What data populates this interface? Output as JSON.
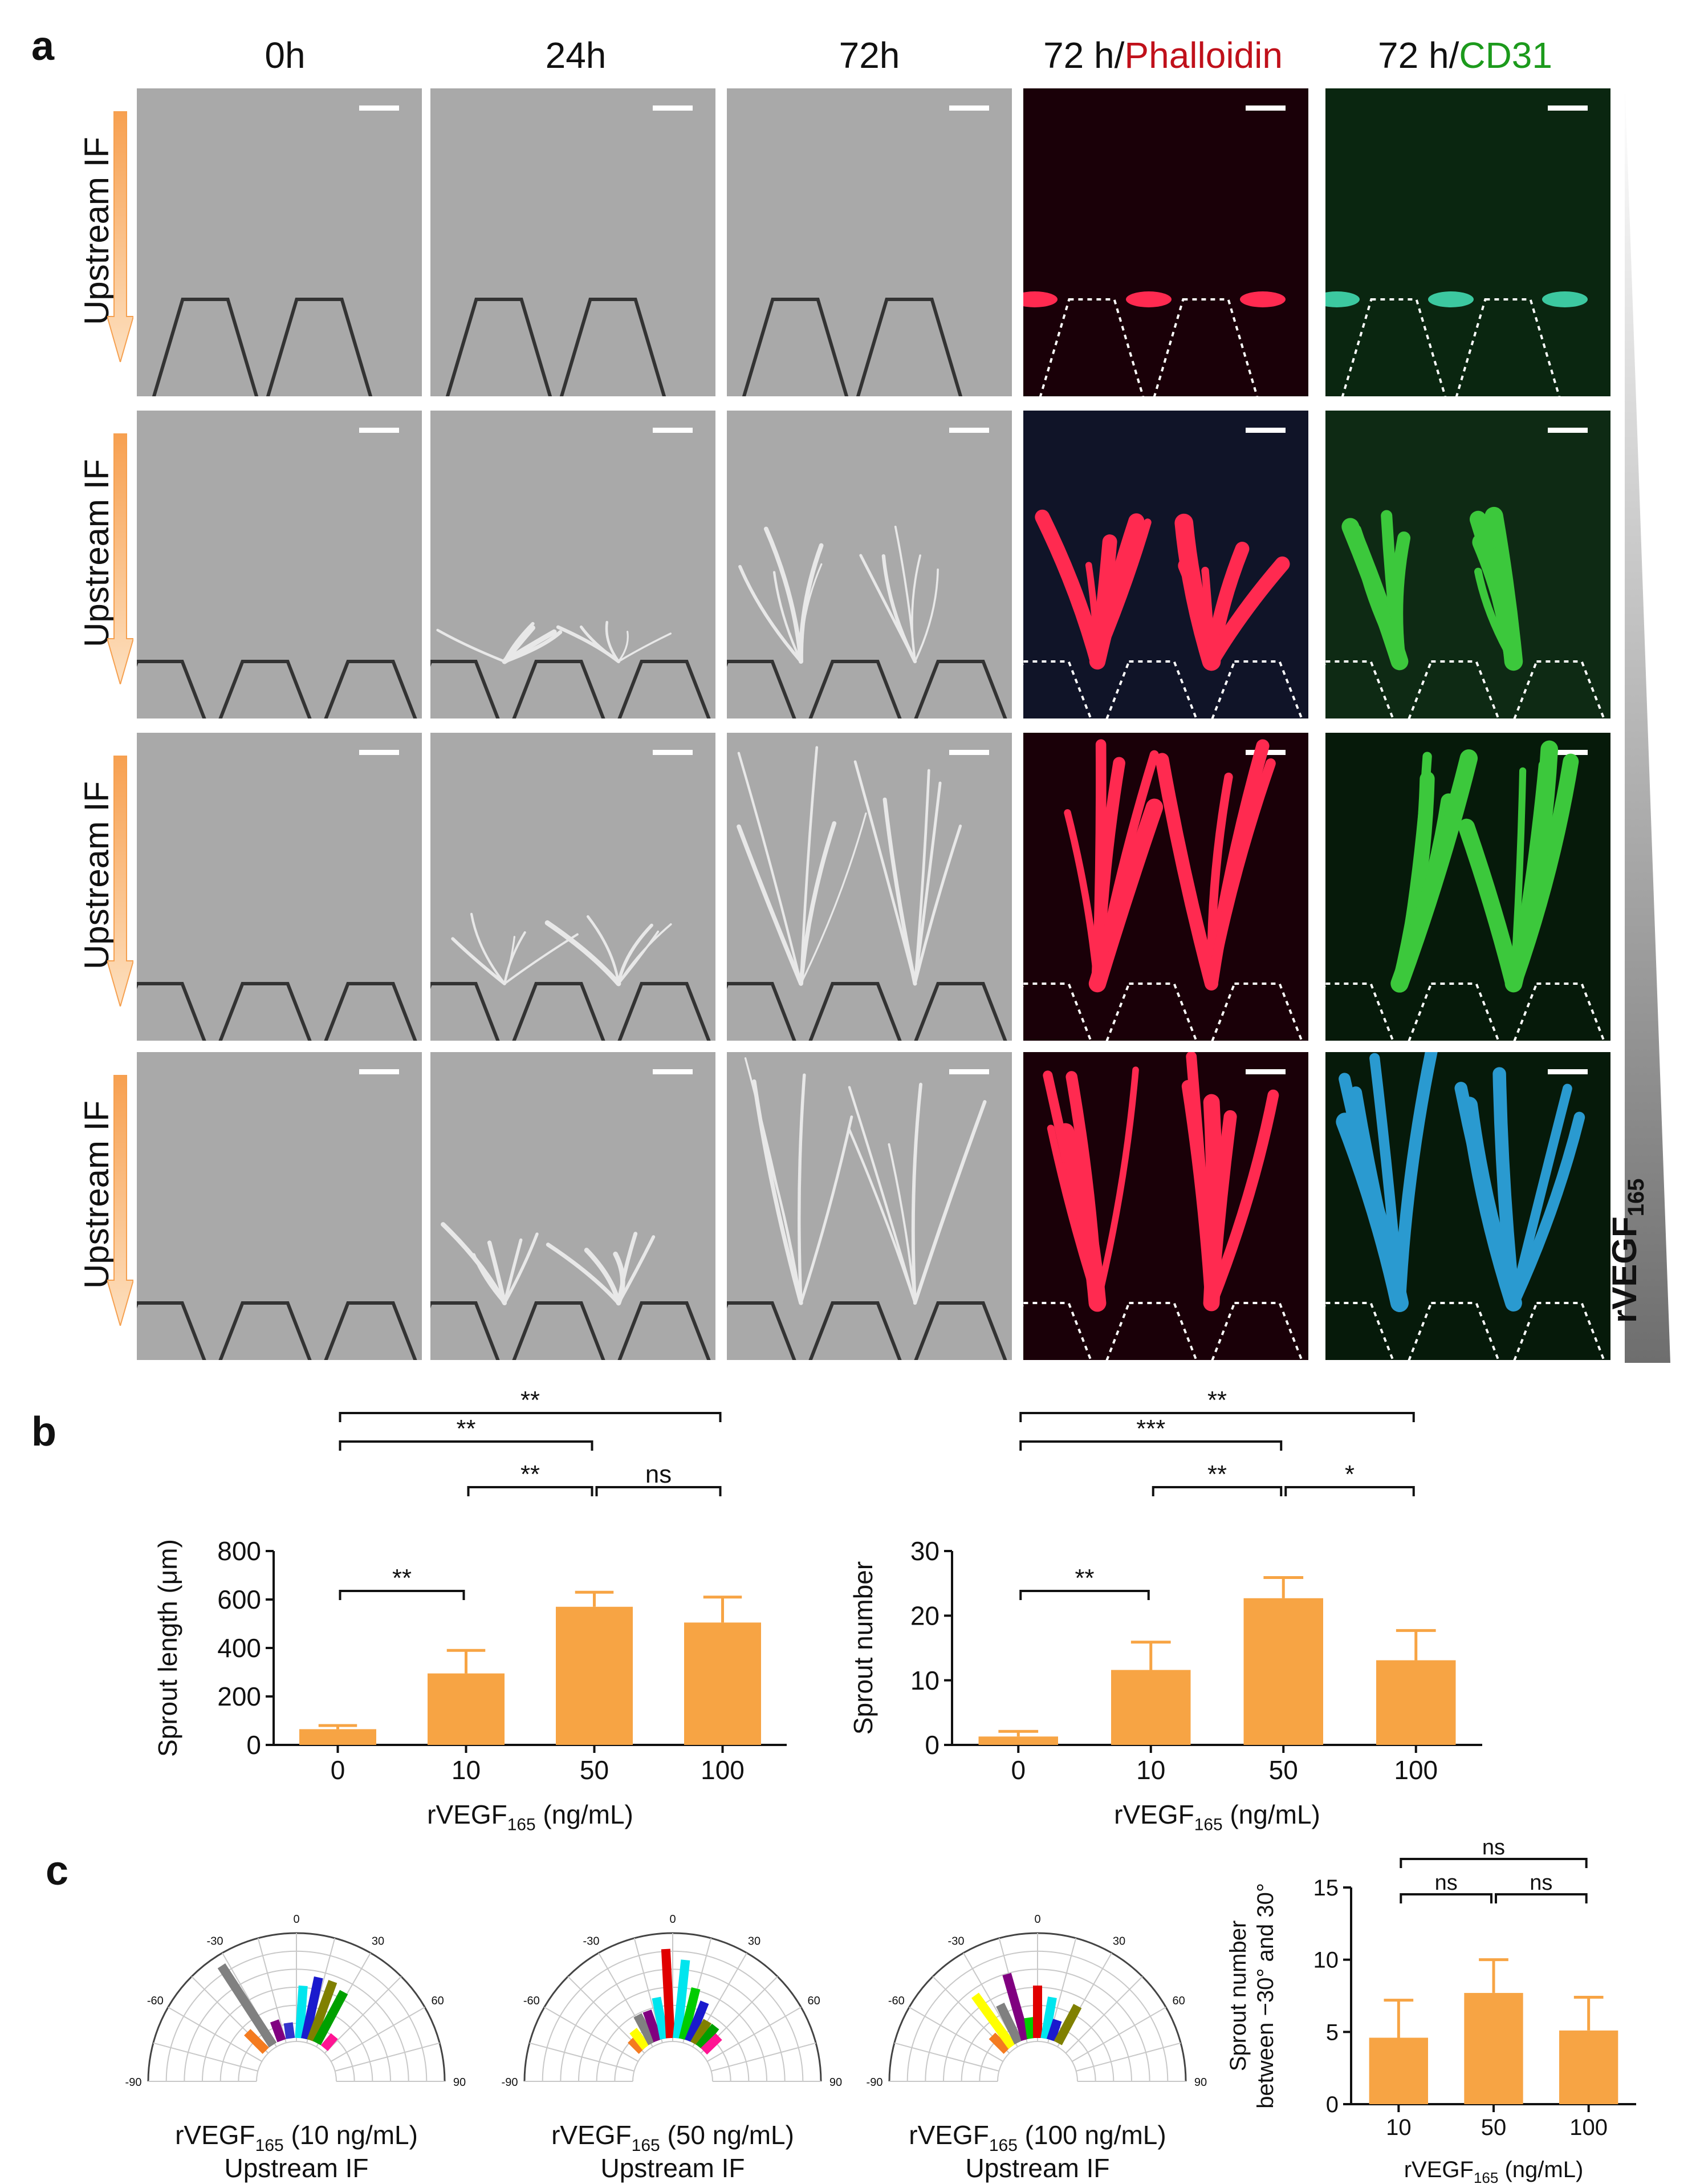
{
  "panels": {
    "a": "a",
    "b": "b",
    "c": "c"
  },
  "panel_a": {
    "columns": [
      {
        "label": "0h"
      },
      {
        "label": "24h"
      },
      {
        "label": "72h"
      },
      {
        "prefix": "72 h/",
        "stain": "Phalloidin",
        "stain_color": "#c0101a"
      },
      {
        "prefix": "72 h/",
        "stain": "CD31",
        "stain_color": "#1c9a1c"
      }
    ],
    "row_labels": [
      "Upstream IF",
      "Upstream IF",
      "Upstream IF",
      "Upstream IF"
    ],
    "gradient_label_main": "rVEGF",
    "gradient_label_sub": "165"
  },
  "chart_data": [
    {
      "type": "bar",
      "categories": [
        "0",
        "10",
        "50",
        "100"
      ],
      "values": [
        65,
        295,
        570,
        505
      ],
      "errors": [
        15,
        95,
        60,
        105
      ],
      "ylabel_main": "Sprout length (μm)",
      "xlabel_main": "rVEGF",
      "xlabel_sub": "165",
      "xlabel_tail": " (ng/mL)",
      "ylim": [
        0,
        800
      ],
      "yticks": [
        "0",
        "200",
        "400",
        "600",
        "800"
      ],
      "color": "#f7a444",
      "significance": [
        {
          "from": 0,
          "to": 3,
          "label": "**"
        },
        {
          "from": 0,
          "to": 2,
          "label": "**"
        },
        {
          "from": 1,
          "to": 2,
          "label": "**"
        },
        {
          "from": 2,
          "to": 3,
          "label": "ns"
        },
        {
          "from": 0,
          "to": 1,
          "label": "**"
        }
      ]
    },
    {
      "type": "bar",
      "categories": [
        "0",
        "10",
        "50",
        "100"
      ],
      "values": [
        1.3,
        11.6,
        22.7,
        13.1
      ],
      "errors": [
        0.8,
        4.3,
        3.2,
        4.6
      ],
      "ylabel_main": "Sprout number",
      "xlabel_main": "rVEGF",
      "xlabel_sub": "165",
      "xlabel_tail": " (ng/mL)",
      "ylim": [
        0,
        30
      ],
      "yticks": [
        "0",
        "10",
        "20",
        "30"
      ],
      "color": "#f7a444",
      "significance": [
        {
          "from": 0,
          "to": 3,
          "label": "**"
        },
        {
          "from": 0,
          "to": 2,
          "label": "***"
        },
        {
          "from": 1,
          "to": 2,
          "label": "**"
        },
        {
          "from": 2,
          "to": 3,
          "label": "*"
        },
        {
          "from": 0,
          "to": 1,
          "label": "**"
        }
      ]
    },
    {
      "type": "polar-bar",
      "caption_main": "rVEGF",
      "caption_sub": "165",
      "caption_tail": "  (10 ng/mL)",
      "caption_line2": "Upstream IF",
      "angle_ticks": [
        "-90",
        "-60",
        "-30",
        "0",
        "30",
        "60",
        "90"
      ],
      "bars": [
        {
          "angle": -45,
          "length": 0.25,
          "color": "#f47b20"
        },
        {
          "angle": -33,
          "length": 0.9,
          "color": "#808080"
        },
        {
          "angle": -20,
          "length": 0.2,
          "color": "#800080"
        },
        {
          "angle": -8,
          "length": 0.15,
          "color": "#3333cc"
        },
        {
          "angle": 4,
          "length": 0.5,
          "color": "#00e5ee"
        },
        {
          "angle": 12,
          "length": 0.6,
          "color": "#1a1acd"
        },
        {
          "angle": 20,
          "length": 0.6,
          "color": "#808000"
        },
        {
          "angle": 28,
          "length": 0.55,
          "color": "#00a000"
        },
        {
          "angle": 40,
          "length": 0.15,
          "color": "#ff1493"
        }
      ]
    },
    {
      "type": "polar-bar",
      "caption_main": "rVEGF",
      "caption_sub": "165",
      "caption_tail": " (50 ng/mL)",
      "caption_line2": "Upstream IF",
      "angle_ticks": [
        "-90",
        "-60",
        "-30",
        "0",
        "30",
        "60",
        "90"
      ],
      "bars": [
        {
          "angle": -45,
          "length": 0.15,
          "color": "#f47b20"
        },
        {
          "angle": -38,
          "length": 0.2,
          "color": "#ffff00"
        },
        {
          "angle": -28,
          "length": 0.3,
          "color": "#808080"
        },
        {
          "angle": -20,
          "length": 0.3,
          "color": "#800080"
        },
        {
          "angle": -11,
          "length": 0.4,
          "color": "#00e5ee"
        },
        {
          "angle": -3,
          "length": 0.85,
          "color": "#e00000"
        },
        {
          "angle": 6,
          "length": 0.75,
          "color": "#00e5ee"
        },
        {
          "angle": 14,
          "length": 0.5,
          "color": "#00cc00"
        },
        {
          "angle": 22,
          "length": 0.4,
          "color": "#1a1acd"
        },
        {
          "angle": 30,
          "length": 0.25,
          "color": "#808000"
        },
        {
          "angle": 38,
          "length": 0.25,
          "color": "#00a000"
        },
        {
          "angle": 46,
          "length": 0.2,
          "color": "#ff1493"
        }
      ]
    },
    {
      "type": "polar-bar",
      "caption_main": "rVEGF",
      "caption_sub": "165",
      "caption_tail": " (100 ng/mL)",
      "caption_line2": "Upstream IF",
      "angle_ticks": [
        "-90",
        "-60",
        "-30",
        "0",
        "30",
        "60",
        "90"
      ],
      "bars": [
        {
          "angle": -45,
          "length": 0.2,
          "color": "#f47b20"
        },
        {
          "angle": -36,
          "length": 0.6,
          "color": "#ffff00"
        },
        {
          "angle": -26,
          "length": 0.4,
          "color": "#808080"
        },
        {
          "angle": -16,
          "length": 0.65,
          "color": "#800080"
        },
        {
          "angle": -8,
          "length": 0.2,
          "color": "#00cc00"
        },
        {
          "angle": 0,
          "length": 0.5,
          "color": "#e00000"
        },
        {
          "angle": 10,
          "length": 0.4,
          "color": "#00e5ee"
        },
        {
          "angle": 18,
          "length": 0.2,
          "color": "#1a1acd"
        },
        {
          "angle": 28,
          "length": 0.4,
          "color": "#808000"
        }
      ]
    },
    {
      "type": "bar",
      "categories": [
        "10",
        "50",
        "100"
      ],
      "values": [
        4.6,
        7.7,
        5.1
      ],
      "errors": [
        2.6,
        2.3,
        2.3
      ],
      "ylabel_line1": "Sprout number",
      "ylabel_line2": "between −30° and 30°",
      "xlabel_main": "rVEGF",
      "xlabel_sub": "165",
      "xlabel_tail": " (ng/mL)",
      "ylim": [
        0,
        15
      ],
      "yticks": [
        "0",
        "5",
        "10",
        "15"
      ],
      "color": "#f7a444",
      "significance": [
        {
          "from": 0,
          "to": 2,
          "label": "ns"
        },
        {
          "from": 0,
          "to": 1,
          "label": "ns"
        },
        {
          "from": 1,
          "to": 2,
          "label": "ns"
        }
      ]
    }
  ]
}
